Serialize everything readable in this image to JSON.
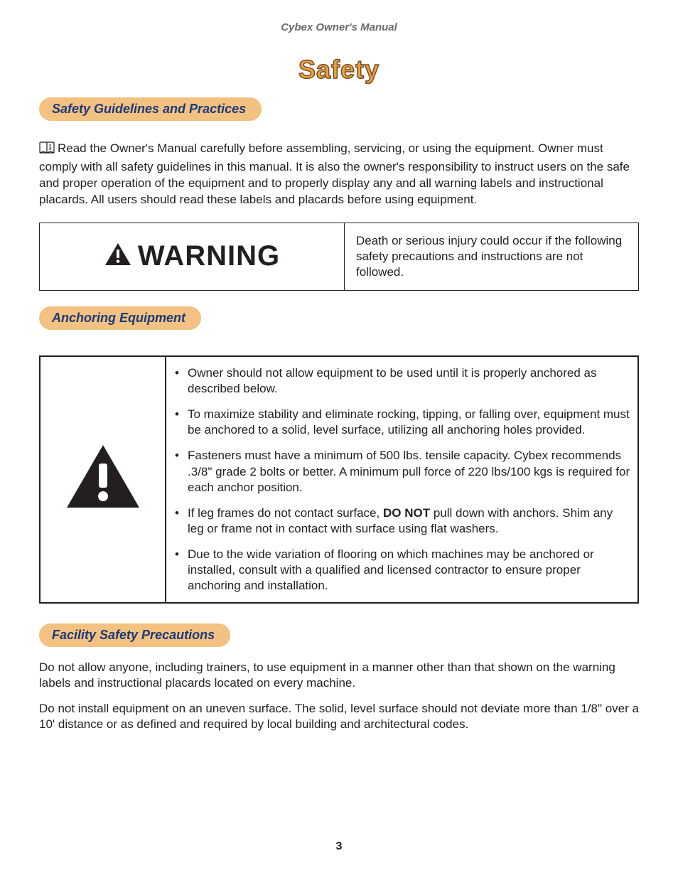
{
  "colors": {
    "pill_bg": "#f3c181",
    "pill_text": "#1a3a7a",
    "title_fill": "#e8a44a",
    "title_stroke": "#7a4a1a",
    "body_text": "#231f20",
    "header_text": "#6b6b6b",
    "border": "#231f20"
  },
  "header": "Cybex Owner's Manual",
  "title": "Safety",
  "section1": {
    "heading": "Safety Guidelines and Practices",
    "body": "Read the Owner's Manual carefully before assembling, servicing, or using the equipment. Owner must comply with all safety guidelines in this manual. It is also the owner's responsibility to instruct users on the safe and proper operation of the equipment and to properly display any and all warning labels and instructional placards. All users should read these labels and placards before using equipment."
  },
  "warning": {
    "label": "WARNING",
    "text": "Death or serious injury could occur if the following safety precautions and instructions are not followed."
  },
  "section2": {
    "heading": "Anchoring Equipment",
    "items": [
      "Owner should not allow equipment to be used until it is properly anchored as described below.",
      "To maximize stability and eliminate rocking, tipping, or falling over, equipment must be anchored to a solid, level surface, utilizing all anchoring holes provided.",
      "Fasteners must have a minimum of 500 lbs. tensile capacity. Cybex recommends .3/8\" grade 2 bolts or better. A minimum pull force of 220 lbs/100 kgs is required for each anchor position.",
      "If leg frames do not contact surface, <b>DO NOT</b> pull down with anchors. Shim any leg or frame not in contact with surface using flat washers.",
      "Due to the wide variation of flooring on which machines may be anchored or installed, consult with a qualified and licensed contractor to ensure proper anchoring and installation."
    ]
  },
  "section3": {
    "heading": "Facility Safety Precautions",
    "paras": [
      "Do not allow anyone, including trainers, to use equipment in a manner other than that shown on the warning labels and instructional placards located on every machine.",
      "Do not install equipment on an uneven surface. The solid, level surface should not deviate more than 1/8\" over a 10' distance or as defined and required by local building and architectural codes."
    ]
  },
  "page_number": "3"
}
